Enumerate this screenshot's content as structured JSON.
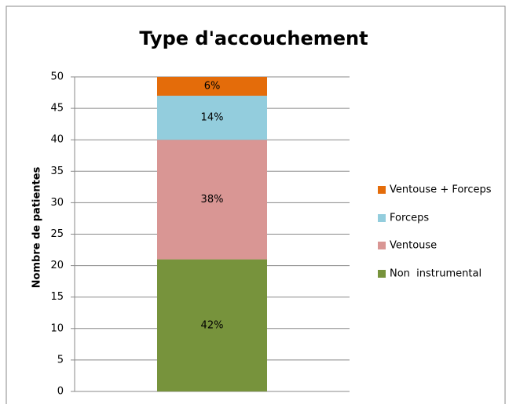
{
  "chart_data": {
    "type": "stacked_bar",
    "title": "Type d'accouchement",
    "y_label": "Nombre de patientes",
    "categories": [
      null
    ],
    "series": [
      {
        "name": "Non  instrumental",
        "color": "#77933c",
        "values": [
          21
        ],
        "percent": [
          42
        ],
        "percent_labels": [
          "42%"
        ]
      },
      {
        "name": "Ventouse",
        "color": "#d99694",
        "values": [
          19
        ],
        "percent": [
          38
        ],
        "percent_labels": [
          "38%"
        ]
      },
      {
        "name": "Forceps",
        "color": "#93cddd",
        "values": [
          7
        ],
        "percent": [
          14
        ],
        "percent_labels": [
          "14%"
        ]
      },
      {
        "name": "Ventouse + Forceps",
        "color": "#e46c0a",
        "values": [
          3
        ],
        "percent": [
          6
        ],
        "percent_labels": [
          "6%"
        ]
      }
    ],
    "ylim": [
      0,
      50
    ],
    "yticks": [
      0,
      5,
      10,
      15,
      20,
      25,
      30,
      35,
      40,
      45,
      50
    ],
    "grid": true,
    "legend": "right"
  }
}
